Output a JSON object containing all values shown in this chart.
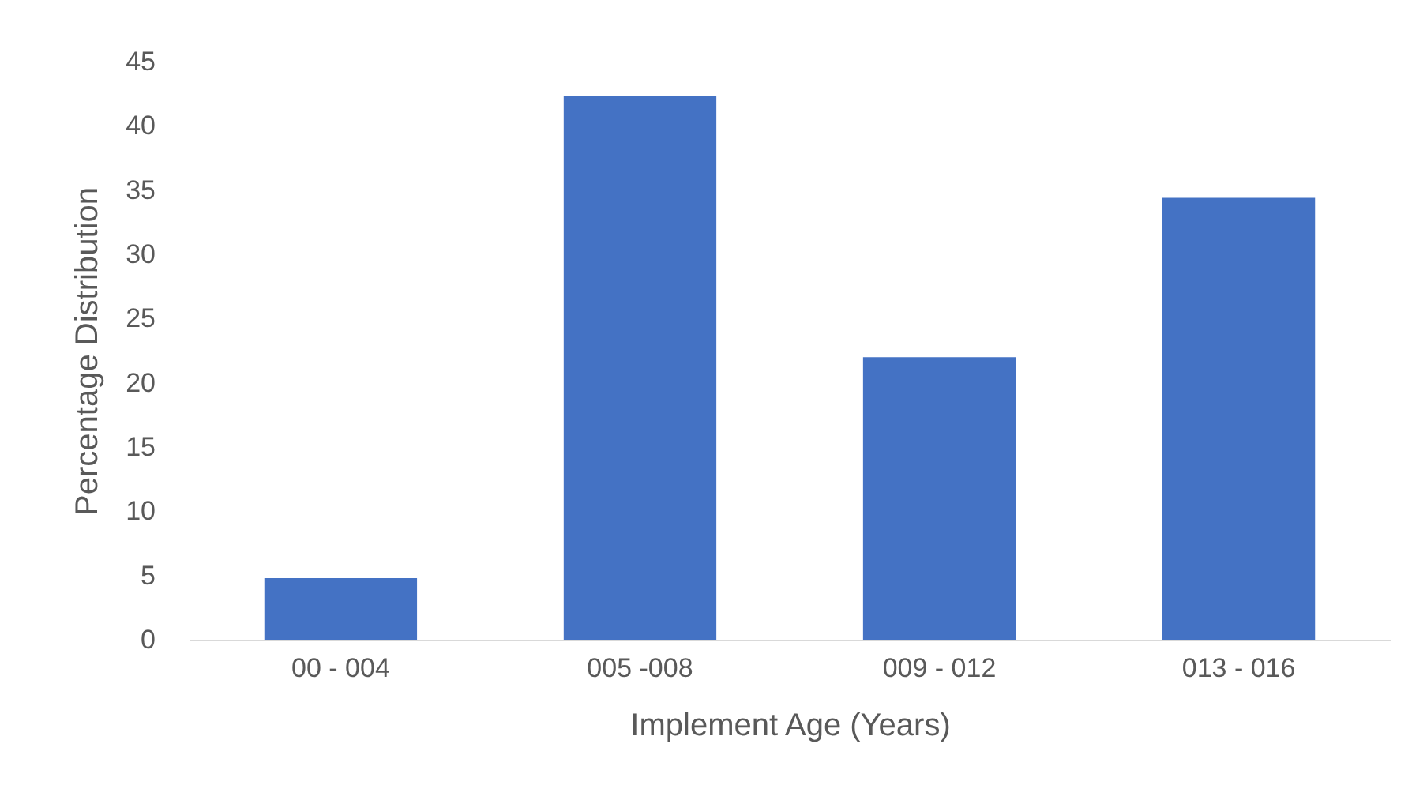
{
  "chart_data": {
    "type": "bar",
    "xlabel": "Implement Age (Years)",
    "ylabel": "Percentage Distribution",
    "categories": [
      "00 - 004",
      "005 -008",
      "009 - 012",
      "013 - 016"
    ],
    "values": [
      4.8,
      42.3,
      22.0,
      34.4
    ],
    "color": "#4472c4",
    "ylim": [
      0,
      45
    ],
    "yticks": [
      0,
      5,
      10,
      15,
      20,
      25,
      30,
      35,
      40,
      45
    ],
    "grid": false
  }
}
